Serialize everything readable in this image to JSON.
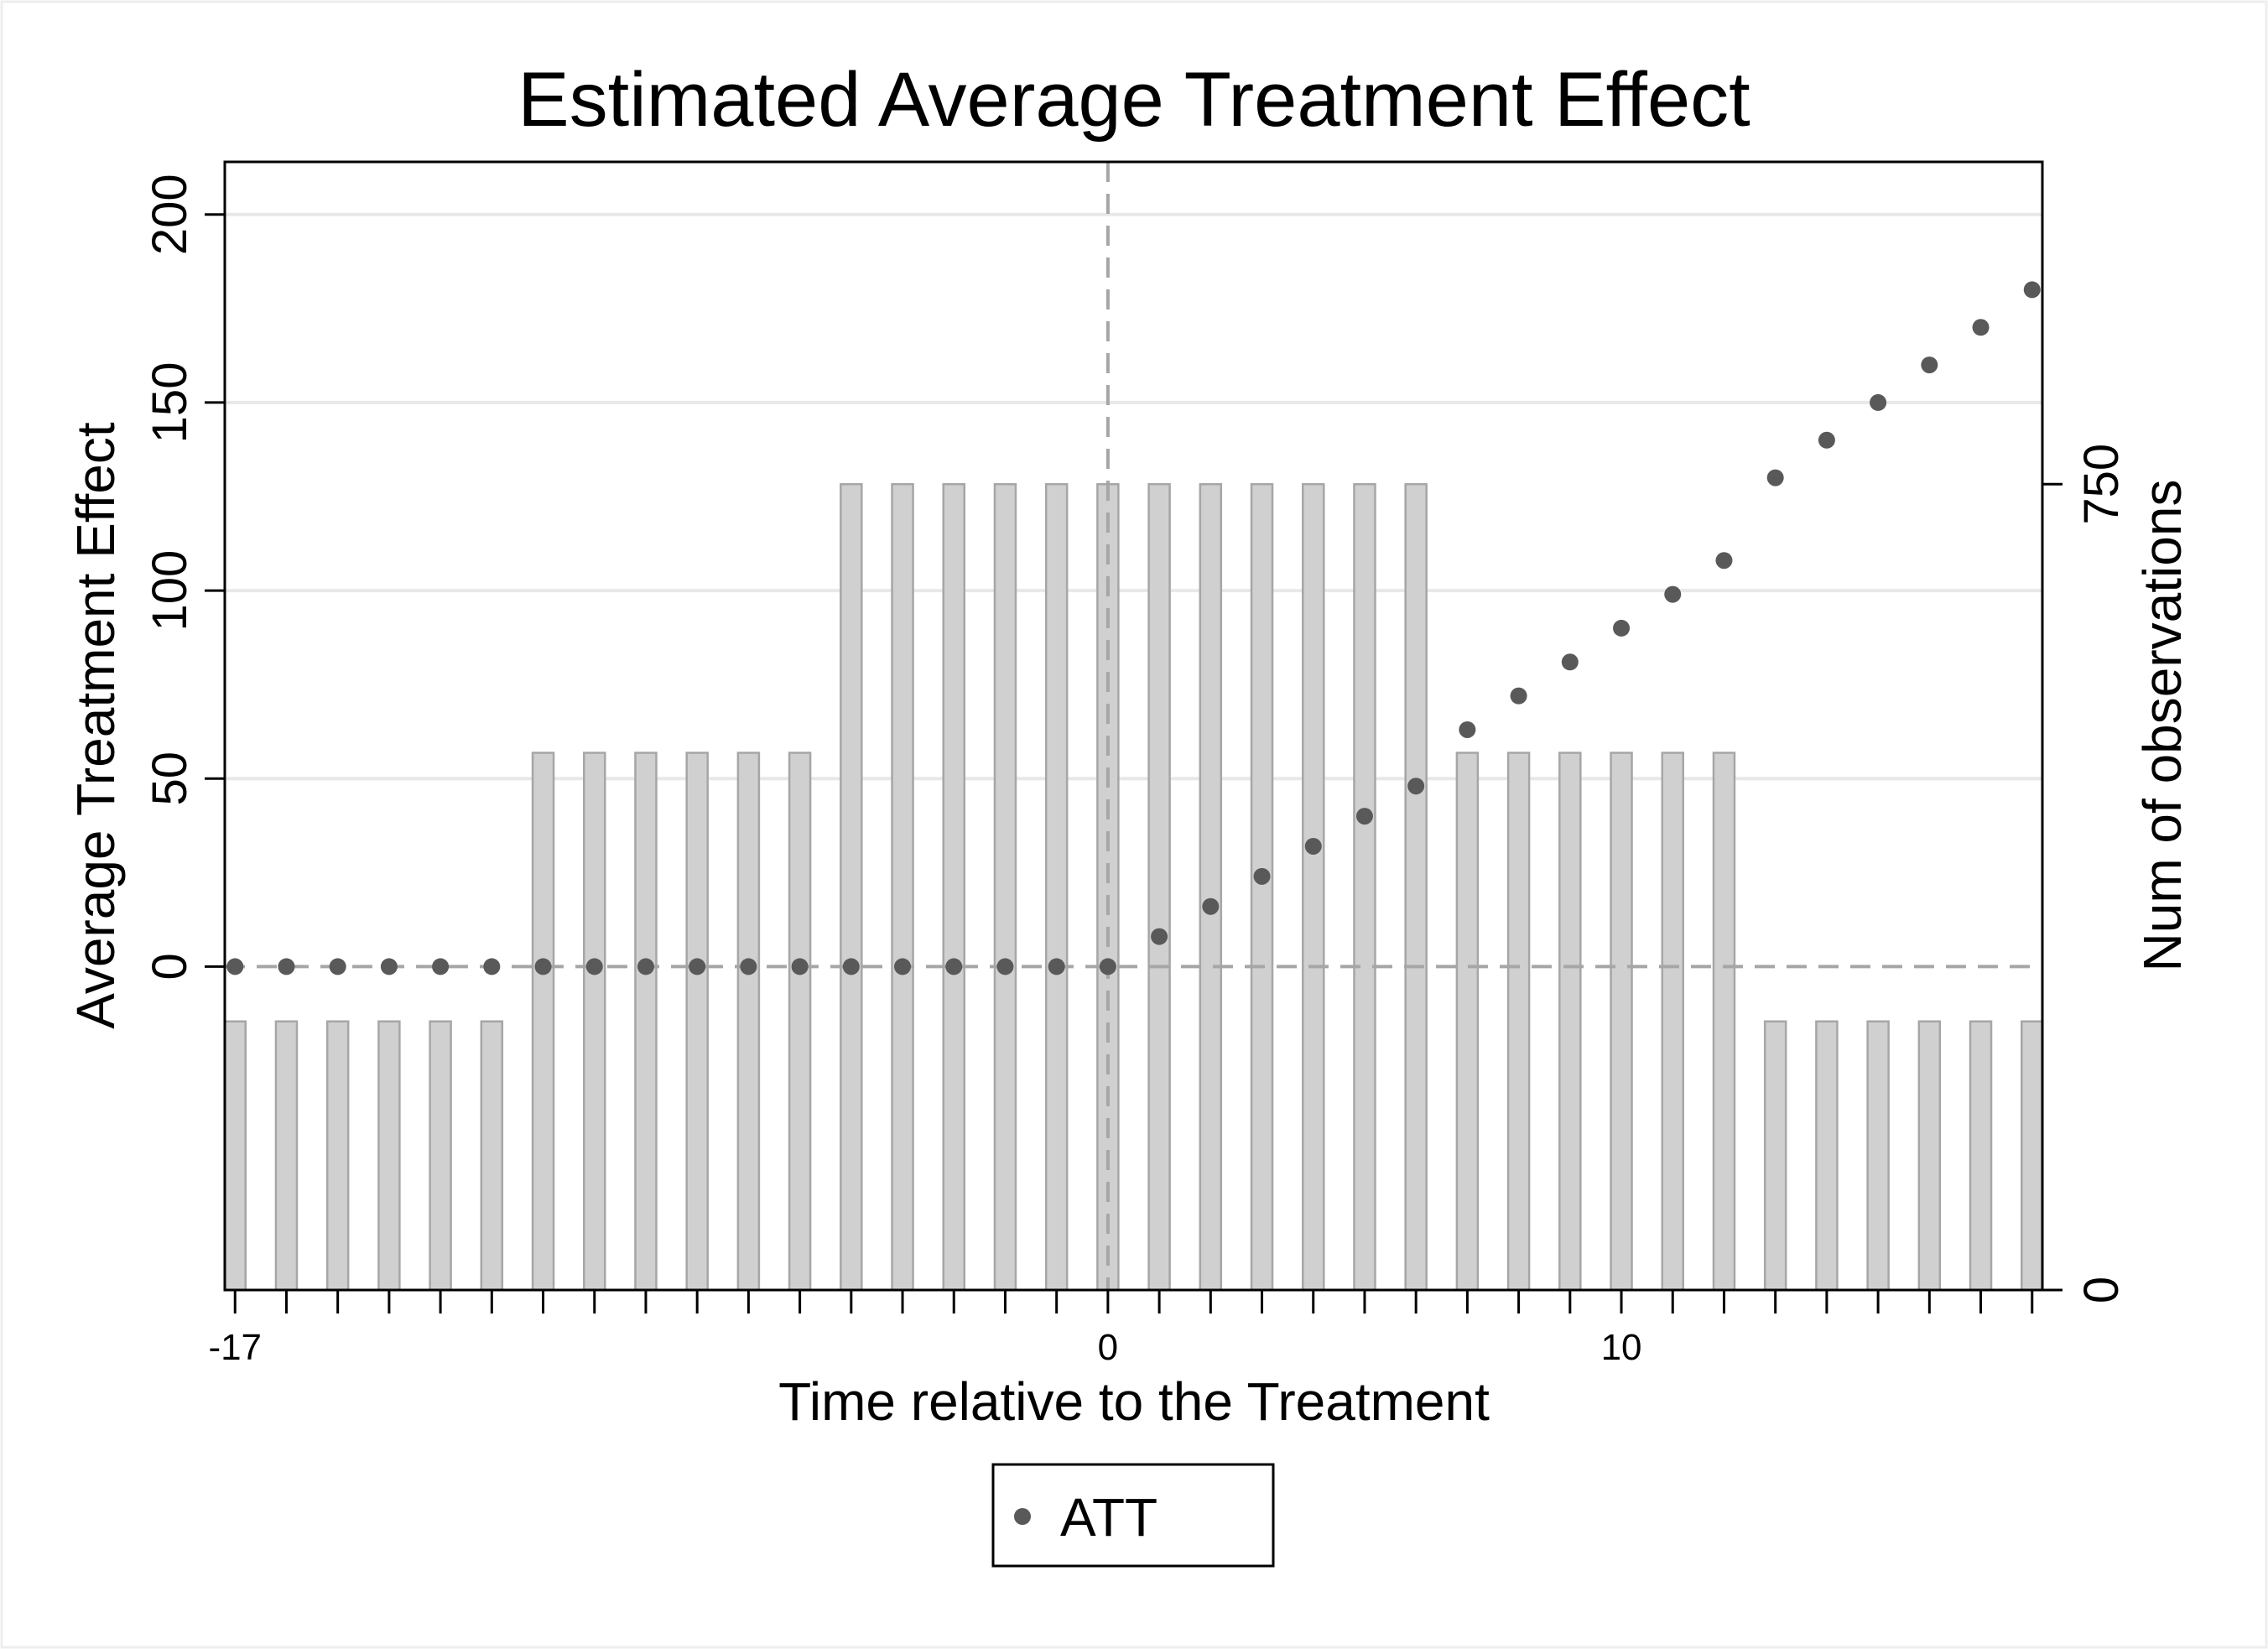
{
  "chart_data": {
    "type": "scatter",
    "title": "Estimated Average Treatment Effect",
    "xlabel": "Time relative to the Treatment",
    "ylabel": "Average Treatment Effect",
    "y2label": "Num of observations",
    "xlim": [
      -17.2,
      18.2
    ],
    "ylim": [
      -86,
      214
    ],
    "y2lim": [
      0,
      1050
    ],
    "x_ticks_labeled": [
      -17,
      0,
      10
    ],
    "x_ticks": [
      -17,
      -16,
      -15,
      -14,
      -13,
      -12,
      -11,
      -10,
      -9,
      -8,
      -7,
      -6,
      -5,
      -4,
      -3,
      -2,
      -1,
      0,
      1,
      2,
      3,
      4,
      5,
      6,
      7,
      8,
      9,
      10,
      11,
      12,
      13,
      14,
      15,
      16,
      17,
      18
    ],
    "y_ticks": [
      0,
      50,
      100,
      150,
      200
    ],
    "y2_ticks": [
      0,
      750
    ],
    "grid": true,
    "reference_lines": {
      "x": 0,
      "y": 0
    },
    "legend": {
      "position": "bottom",
      "entries": [
        "ATT"
      ]
    },
    "colors": {
      "att": "#595959",
      "bar_fill": "#d0d0d0",
      "bar_stroke": "#a6a6a6",
      "grid": "#e8e8e8",
      "ref": "#a6a6a6"
    },
    "att_series": {
      "name": "ATT",
      "x": [
        -17,
        -16,
        -15,
        -14,
        -13,
        -12,
        -11,
        -10,
        -9,
        -8,
        -7,
        -6,
        -5,
        -4,
        -3,
        -2,
        -1,
        0,
        1,
        2,
        3,
        4,
        5,
        6,
        7,
        8,
        9,
        10,
        11,
        12,
        13,
        14,
        15,
        16,
        17,
        18
      ],
      "y": [
        0,
        0,
        0,
        0,
        0,
        0,
        0,
        0,
        0,
        0,
        0,
        0,
        0,
        0,
        0,
        0,
        0,
        0,
        8,
        16,
        24,
        32,
        40,
        48,
        63,
        72,
        81,
        90,
        99,
        108,
        130,
        140,
        150,
        160,
        170,
        180
      ]
    },
    "obs_series": {
      "name": "Num of observations",
      "x": [
        -17,
        -16,
        -15,
        -14,
        -13,
        -12,
        -11,
        -10,
        -9,
        -8,
        -7,
        -6,
        -5,
        -4,
        -3,
        -2,
        -1,
        0,
        1,
        2,
        3,
        4,
        5,
        6,
        7,
        8,
        9,
        10,
        11,
        12,
        13,
        14,
        15,
        16,
        17,
        18
      ],
      "y": [
        250,
        250,
        250,
        250,
        250,
        250,
        500,
        500,
        500,
        500,
        500,
        500,
        750,
        750,
        750,
        750,
        750,
        750,
        750,
        750,
        750,
        750,
        750,
        750,
        500,
        500,
        500,
        500,
        500,
        500,
        250,
        250,
        250,
        250,
        250,
        250
      ]
    }
  }
}
